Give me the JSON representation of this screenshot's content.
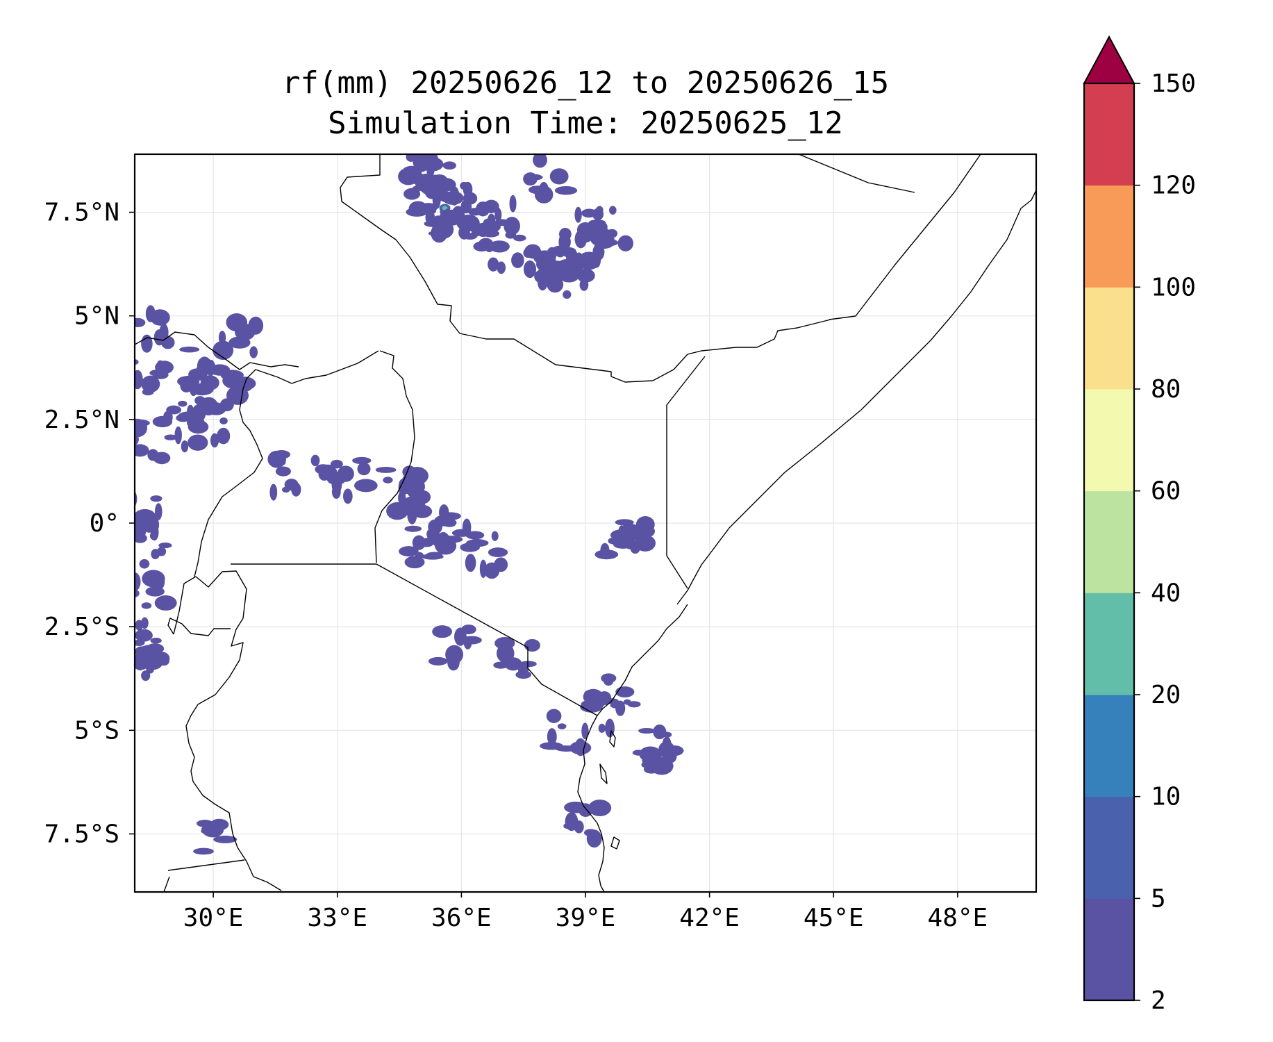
{
  "title": {
    "line1": "rf(mm) 20250626_12 to 20250626_15",
    "line2": "Simulation Time: 20250625_12"
  },
  "map": {
    "lon_range": [
      28.1,
      49.9
    ],
    "lat_range": [
      -8.9,
      8.9
    ],
    "gridlines": true,
    "lon_ticks": [
      {
        "value": 30,
        "label": "30°E"
      },
      {
        "value": 33,
        "label": "33°E"
      },
      {
        "value": 36,
        "label": "36°E"
      },
      {
        "value": 39,
        "label": "39°E"
      },
      {
        "value": 42,
        "label": "42°E"
      },
      {
        "value": 45,
        "label": "45°E"
      },
      {
        "value": 48,
        "label": "48°E"
      }
    ],
    "lat_ticks": [
      {
        "value": 7.5,
        "label": "7.5°N"
      },
      {
        "value": 5,
        "label": "5°N"
      },
      {
        "value": 2.5,
        "label": "2.5°N"
      },
      {
        "value": 0,
        "label": "0°"
      },
      {
        "value": -2.5,
        "label": "2.5°S"
      },
      {
        "value": -5,
        "label": "5°S"
      },
      {
        "value": -7.5,
        "label": "7.5°S"
      }
    ]
  },
  "colorbar": {
    "levels": [
      2,
      5,
      10,
      20,
      40,
      60,
      80,
      100,
      120,
      150
    ],
    "labels": [
      "2",
      "5",
      "10",
      "20",
      "40",
      "60",
      "80",
      "100",
      "120",
      "150"
    ],
    "colors": [
      "#5a52a3",
      "#4a62ad",
      "#3680bb",
      "#62bea8",
      "#bde3a0",
      "#f3f9af",
      "#fadf8c",
      "#f99b58",
      "#d43e51"
    ],
    "extend_color": "#9e0142",
    "extend": "max"
  },
  "chart_data": {
    "type": "heatmap",
    "title": "rf(mm) 20250626_12 to 20250626_15\nSimulation Time: 20250625_12",
    "xlabel": "",
    "ylabel": "",
    "xlim": [
      28.1,
      49.9
    ],
    "ylim": [
      -8.9,
      8.9
    ],
    "units": "mm",
    "rain_cells": [
      {
        "lon": 35.6,
        "lat": 7.6,
        "v": 8
      },
      {
        "lon": 35.3,
        "lat": 7.8,
        "v": 4
      },
      {
        "lon": 35.2,
        "lat": 8.4,
        "v": 4
      },
      {
        "lon": 34.9,
        "lat": 8.7,
        "v": 3
      },
      {
        "lon": 35.7,
        "lat": 8.2,
        "v": 3
      },
      {
        "lon": 35.8,
        "lat": 7.2,
        "v": 3
      },
      {
        "lon": 36.3,
        "lat": 7.1,
        "v": 3
      },
      {
        "lon": 36.9,
        "lat": 7.4,
        "v": 3
      },
      {
        "lon": 37.0,
        "lat": 6.5,
        "v": 3
      },
      {
        "lon": 38.1,
        "lat": 8.3,
        "v": 3
      },
      {
        "lon": 39.2,
        "lat": 7.1,
        "v": 3
      },
      {
        "lon": 39.0,
        "lat": 6.6,
        "v": 4
      },
      {
        "lon": 38.7,
        "lat": 6.2,
        "v": 3
      },
      {
        "lon": 38.4,
        "lat": 5.9,
        "v": 3
      },
      {
        "lon": 39.6,
        "lat": 6.8,
        "v": 3
      },
      {
        "lon": 37.8,
        "lat": 6.2,
        "v": 3
      },
      {
        "lon": 29.8,
        "lat": 3.7,
        "v": 4
      },
      {
        "lon": 29.5,
        "lat": 3.0,
        "v": 4
      },
      {
        "lon": 29.9,
        "lat": 2.4,
        "v": 3
      },
      {
        "lon": 29.3,
        "lat": 2.3,
        "v": 3
      },
      {
        "lon": 30.3,
        "lat": 3.3,
        "v": 3
      },
      {
        "lon": 30.6,
        "lat": 4.4,
        "v": 3
      },
      {
        "lon": 28.5,
        "lat": 4.6,
        "v": 3
      },
      {
        "lon": 28.4,
        "lat": 3.6,
        "v": 3
      },
      {
        "lon": 28.5,
        "lat": 2.0,
        "v": 3
      },
      {
        "lon": 28.3,
        "lat": 0.2,
        "v": 4
      },
      {
        "lon": 28.5,
        "lat": -0.6,
        "v": 3
      },
      {
        "lon": 28.4,
        "lat": -1.7,
        "v": 3
      },
      {
        "lon": 28.4,
        "lat": -2.9,
        "v": 4
      },
      {
        "lon": 28.6,
        "lat": -3.4,
        "v": 3
      },
      {
        "lon": 32.8,
        "lat": 1.2,
        "v": 3
      },
      {
        "lon": 33.3,
        "lat": 1.1,
        "v": 3
      },
      {
        "lon": 31.9,
        "lat": 1.2,
        "v": 3
      },
      {
        "lon": 34.8,
        "lat": 0.5,
        "v": 3
      },
      {
        "lon": 35.3,
        "lat": -0.1,
        "v": 4
      },
      {
        "lon": 35.0,
        "lat": -0.7,
        "v": 3
      },
      {
        "lon": 35.8,
        "lat": -0.3,
        "v": 3
      },
      {
        "lon": 36.5,
        "lat": -0.7,
        "v": 3
      },
      {
        "lon": 34.6,
        "lat": 1.0,
        "v": 3
      },
      {
        "lon": 39.9,
        "lat": -0.6,
        "v": 3
      },
      {
        "lon": 40.2,
        "lat": -0.2,
        "v": 3
      },
      {
        "lon": 39.6,
        "lat": -4.2,
        "v": 3
      },
      {
        "lon": 39.8,
        "lat": -4.5,
        "v": 3
      },
      {
        "lon": 40.7,
        "lat": -5.3,
        "v": 3
      },
      {
        "lon": 40.8,
        "lat": -5.6,
        "v": 3
      },
      {
        "lon": 38.9,
        "lat": -7.3,
        "v": 3
      },
      {
        "lon": 38.6,
        "lat": -5.0,
        "v": 3
      },
      {
        "lon": 37.4,
        "lat": -3.2,
        "v": 3
      },
      {
        "lon": 35.8,
        "lat": -2.9,
        "v": 3
      },
      {
        "lon": 29.9,
        "lat": -7.5,
        "v": 3
      }
    ]
  }
}
